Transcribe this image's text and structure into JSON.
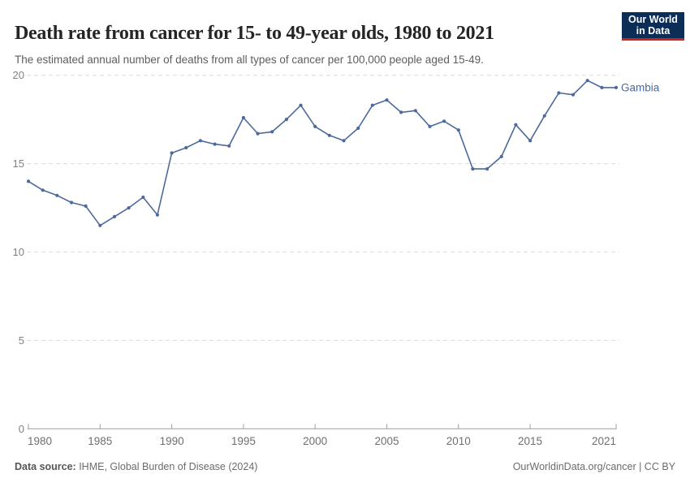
{
  "header": {
    "title": "Death rate from cancer for 15- to 49-year olds, 1980 to 2021",
    "subtitle": "The estimated annual number of deaths from all types of cancer per 100,000 people aged 15-49."
  },
  "logo": {
    "line1": "Our World",
    "line2": "in Data",
    "bg_color": "#0c2d56",
    "accent_color": "#cb2420"
  },
  "footer": {
    "datasource_label": "Data source:",
    "datasource_value": " IHME, Global Burden of Disease (2024)",
    "attribution": "OurWorldinData.org/cancer | CC BY"
  },
  "chart_data": {
    "type": "line",
    "title": "Death rate from cancer for 15- to 49-year olds, 1980 to 2021",
    "xlabel": "",
    "ylabel": "",
    "xlim": [
      1980,
      2021
    ],
    "ylim": [
      0,
      20
    ],
    "xticks": [
      1980,
      1985,
      1990,
      1995,
      2000,
      2005,
      2010,
      2015,
      2021
    ],
    "yticks": [
      0,
      5,
      10,
      15,
      20
    ],
    "grid": "horizontal-dashed",
    "legend": "end-of-line-label",
    "colors": {
      "line": "#4c6a9c",
      "grid": "#dcdcdc",
      "axis": "#9e9e9e",
      "y_tick_label": "#808080",
      "x_tick_label": "#6f6f6f"
    },
    "series": [
      {
        "name": "Gambia",
        "x": [
          1980,
          1981,
          1982,
          1983,
          1984,
          1985,
          1986,
          1987,
          1988,
          1989,
          1990,
          1991,
          1992,
          1993,
          1994,
          1995,
          1996,
          1997,
          1998,
          1999,
          2000,
          2001,
          2002,
          2003,
          2004,
          2005,
          2006,
          2007,
          2008,
          2009,
          2010,
          2011,
          2012,
          2013,
          2014,
          2015,
          2016,
          2017,
          2018,
          2019,
          2020,
          2021
        ],
        "values": [
          14.0,
          13.5,
          13.2,
          12.8,
          12.6,
          11.5,
          12.0,
          12.5,
          13.1,
          12.1,
          15.6,
          15.9,
          16.3,
          16.1,
          16.0,
          17.6,
          16.7,
          16.8,
          17.5,
          18.3,
          17.1,
          16.6,
          16.3,
          17.0,
          18.3,
          18.6,
          17.9,
          18.0,
          17.1,
          17.4,
          16.9,
          14.7,
          14.7,
          15.4,
          17.2,
          16.3,
          17.7,
          19.0,
          18.9,
          19.7,
          19.3,
          19.3
        ]
      }
    ]
  }
}
